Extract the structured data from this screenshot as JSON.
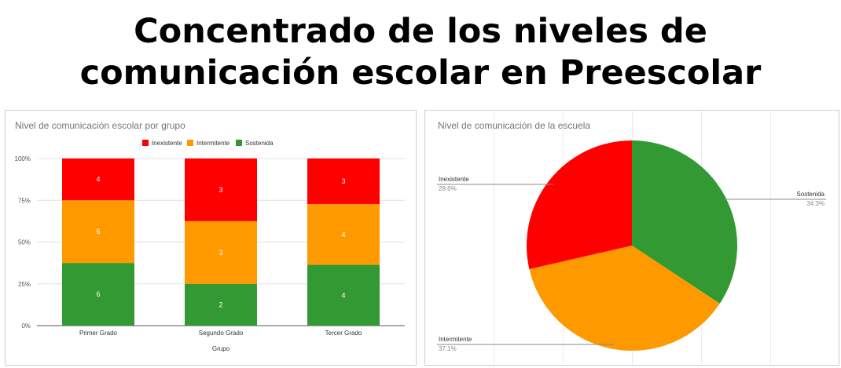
{
  "header": {
    "title_line1": "Concentrado de los niveles de",
    "title_line2": "comunicación escolar en Preescolar"
  },
  "colors": {
    "inexistente": "#ff0000",
    "intermitente": "#ff9900",
    "sostenida": "#339933"
  },
  "chart_data": [
    {
      "type": "bar",
      "stacked": "percent",
      "title": "Nivel de comunicación escolar por grupo",
      "xlabel": "Grupo",
      "ylabel": "",
      "ylim": [
        0,
        100
      ],
      "yticks": [
        "0%",
        "25%",
        "50%",
        "75%",
        "100%"
      ],
      "legend_position": "top",
      "categories": [
        "Primer Grado",
        "Segundo Grado",
        "Tercer Grado"
      ],
      "series": [
        {
          "name": "Inexistente",
          "values": [
            4,
            3,
            3
          ],
          "color": "#ff0000"
        },
        {
          "name": "Intermitente",
          "values": [
            6,
            3,
            4
          ],
          "color": "#ff9900"
        },
        {
          "name": "Sostenida",
          "values": [
            6,
            2,
            4
          ],
          "color": "#339933"
        }
      ]
    },
    {
      "type": "pie",
      "title": "Nivel de comunicación de la escuela",
      "slices": [
        {
          "label": "Sostenida",
          "percent_label": "34.3%",
          "value": 34.3,
          "color": "#339933"
        },
        {
          "label": "Intermitente",
          "percent_label": "37.1%",
          "value": 37.1,
          "color": "#ff9900"
        },
        {
          "label": "Inexistente",
          "percent_label": "28.6%",
          "value": 28.6,
          "color": "#ff0000"
        }
      ]
    }
  ]
}
